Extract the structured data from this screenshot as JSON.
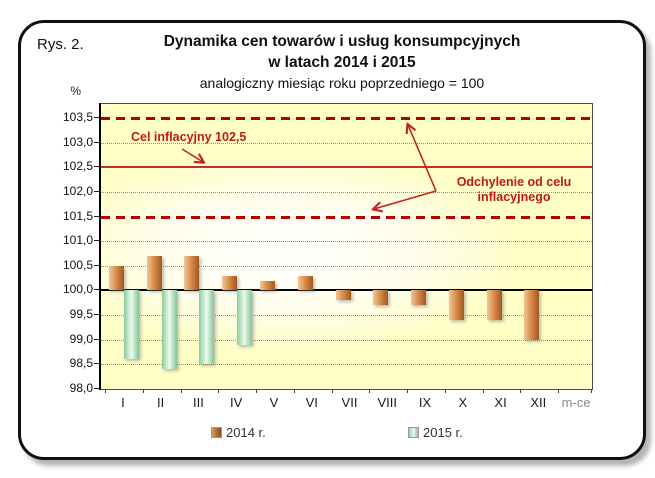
{
  "figure_label": "Rys. 2.",
  "title": {
    "line1": "Dynamika cen towarów i usług konsumpcyjnych",
    "line2": "w latach 2014 i 2015",
    "line3": "analogiczny miesiąc roku poprzedniego = 100"
  },
  "y_axis_unit": "%",
  "x_axis_unit": "m-ce",
  "annotations": {
    "inflation_target": "Cel inflacyjny 102,5",
    "deviation_line1": "Odchylenie od celu",
    "deviation_line2": "inflacyjnego"
  },
  "legend": {
    "item_2014": "2014 r.",
    "item_2015": "2015 r."
  },
  "colors": {
    "plot_background_yellow": "#ffffc6",
    "reference_red": "#b40000",
    "target_line_red": "#cd2a2a",
    "annotation_red": "#c01818",
    "bar_2014": [
      "#f2c695",
      "#d88f4f",
      "#a2571e"
    ],
    "bar_2015": [
      "#8fc99e",
      "#ecfaef",
      "#86c295"
    ],
    "baseline_black": "#000000"
  },
  "chart_data": {
    "type": "bar",
    "title": "Dynamika cen towarów i usług konsumpcyjnych w latach 2014 i 2015",
    "subtitle": "analogiczny miesiąc roku poprzedniego = 100",
    "categories": [
      "I",
      "II",
      "III",
      "IV",
      "V",
      "VI",
      "VII",
      "VIII",
      "IX",
      "X",
      "XI",
      "XII"
    ],
    "series": [
      {
        "name": "2014 r.",
        "values": [
          100.5,
          100.7,
          100.7,
          100.3,
          100.2,
          100.3,
          99.8,
          99.7,
          99.7,
          99.4,
          99.4,
          99.0
        ]
      },
      {
        "name": "2015 r.",
        "values": [
          98.6,
          98.4,
          98.5,
          98.9,
          null,
          null,
          null,
          null,
          null,
          null,
          null,
          null
        ]
      }
    ],
    "baseline": 100,
    "ylabel": "%",
    "xlabel": "m-ce",
    "ylim": [
      98.0,
      103.5
    ],
    "grid": true,
    "legend_position": "bottom",
    "yticks": [
      {
        "value": 103.5,
        "label": "103,5",
        "line": "dashed-red"
      },
      {
        "value": 103.0,
        "label": "103,0",
        "line": "dotted"
      },
      {
        "value": 102.5,
        "label": "102,5",
        "line": "solid-red"
      },
      {
        "value": 102.0,
        "label": "102,0",
        "line": "dotted"
      },
      {
        "value": 101.5,
        "label": "101,5",
        "line": "dashed-red"
      },
      {
        "value": 101.0,
        "label": "101,0",
        "line": "dotted"
      },
      {
        "value": 100.5,
        "label": "100,5",
        "line": "dotted"
      },
      {
        "value": 100.0,
        "label": "100,0",
        "line": "solid-black"
      },
      {
        "value": 99.5,
        "label": "99,5",
        "line": "dotted"
      },
      {
        "value": 99.0,
        "label": "99,0",
        "line": "dotted"
      },
      {
        "value": 98.5,
        "label": "98,5",
        "line": "dotted"
      },
      {
        "value": 98.0,
        "label": "98,0",
        "line": "none"
      }
    ],
    "reference_lines": [
      {
        "value": 102.5,
        "style": "solid",
        "label": "Cel inflacyjny 102,5"
      },
      {
        "value": 103.5,
        "style": "dashed",
        "label": "Odchylenie od celu inflacyjnego"
      },
      {
        "value": 101.5,
        "style": "dashed",
        "label": "Odchylenie od celu inflacyjnego"
      }
    ]
  }
}
